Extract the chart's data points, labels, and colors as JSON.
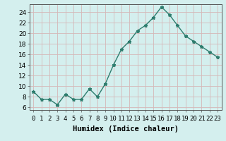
{
  "x": [
    0,
    1,
    2,
    3,
    4,
    5,
    6,
    7,
    8,
    9,
    10,
    11,
    12,
    13,
    14,
    15,
    16,
    17,
    18,
    19,
    20,
    21,
    22,
    23
  ],
  "y": [
    9,
    7.5,
    7.5,
    6.5,
    8.5,
    7.5,
    7.5,
    9.5,
    8,
    10.5,
    14,
    17,
    18.5,
    20.5,
    21.5,
    23,
    25,
    23.5,
    21.5,
    19.5,
    18.5,
    17.5,
    16.5,
    15.5
  ],
  "line_color": "#2e7d6e",
  "marker": "*",
  "marker_size": 3.5,
  "bg_color": "#d4efee",
  "grid_color": "#d4b8b8",
  "xlabel": "Humidex (Indice chaleur)",
  "xlabel_fontsize": 7.5,
  "ylabel_ticks": [
    6,
    8,
    10,
    12,
    14,
    16,
    18,
    20,
    22,
    24
  ],
  "xlim": [
    -0.5,
    23.5
  ],
  "ylim": [
    5.5,
    25.5
  ],
  "xtick_labels": [
    "0",
    "1",
    "2",
    "3",
    "4",
    "5",
    "6",
    "7",
    "8",
    "9",
    "10",
    "11",
    "12",
    "13",
    "14",
    "15",
    "16",
    "17",
    "18",
    "19",
    "20",
    "21",
    "22",
    "23"
  ],
  "tick_fontsize": 6.5,
  "spine_color": "#555555",
  "linewidth": 1.0
}
